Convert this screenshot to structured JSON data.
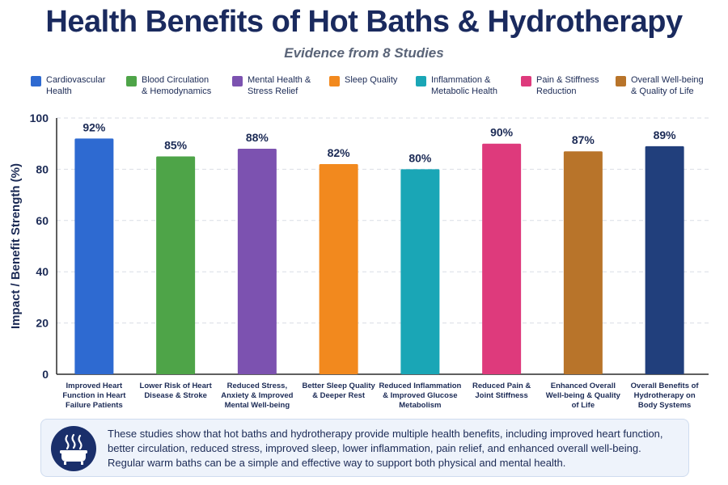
{
  "chart_data": {
    "type": "bar",
    "title": "Health Benefits of Hot Baths & Hydrotherapy",
    "subtitle": "Evidence from 8 Studies",
    "ylabel": "Impact / Benefit Strength (%)",
    "xlabel": "",
    "ylim": [
      0,
      100
    ],
    "yticks": [
      0,
      20,
      40,
      60,
      80,
      100
    ],
    "grid": true,
    "legend_position": "top",
    "categories": [
      "Improved Heart Function in Heart Failure Patients",
      "Lower Risk of Heart Disease & Stroke",
      "Reduced Stress, Anxiety & Improved Mental Well-being",
      "Better Sleep Quality & Deeper Rest",
      "Reduced Inflammation & Improved Glucose Metabolism",
      "Reduced Pain & Joint Stiffness",
      "Enhanced Overall Well-being & Quality of Life",
      "Overall Benefits of Hydrotherapy on Body Systems"
    ],
    "category_lines": [
      [
        "Improved Heart",
        "Function in Heart",
        "Failure Patients"
      ],
      [
        "Lower Risk of Heart",
        "Disease & Stroke"
      ],
      [
        "Reduced Stress,",
        "Anxiety & Improved",
        "Mental Well-being"
      ],
      [
        "Better Sleep Quality",
        "& Deeper Rest"
      ],
      [
        "Reduced Inflammation",
        "& Improved Glucose",
        "Metabolism"
      ],
      [
        "Reduced Pain &",
        "Joint Stiffness"
      ],
      [
        "Enhanced Overall",
        "Well-being & Quality",
        "of Life"
      ],
      [
        "Overall Benefits of",
        "Hydrotherapy on",
        "Body Systems"
      ]
    ],
    "values": [
      92,
      85,
      88,
      82,
      80,
      90,
      87,
      89
    ],
    "value_labels": [
      "92%",
      "85%",
      "88%",
      "82%",
      "80%",
      "90%",
      "87%",
      "89%"
    ],
    "colors": [
      "#2e6ad1",
      "#4ea448",
      "#7c52b0",
      "#f2891e",
      "#1aa6b6",
      "#de3a7c",
      "#b8742a",
      "#213f7c"
    ],
    "legend": [
      {
        "lines": [
          "Cardiovascular",
          "Health"
        ],
        "color": "#2e6ad1"
      },
      {
        "lines": [
          "Blood Circulation",
          "& Hemodynamics"
        ],
        "color": "#4ea448"
      },
      {
        "lines": [
          "Mental Health &",
          "Stress Relief"
        ],
        "color": "#7c52b0"
      },
      {
        "lines": [
          "Sleep Quality"
        ],
        "color": "#f2891e"
      },
      {
        "lines": [
          "Inflammation &",
          "Metabolic Health"
        ],
        "color": "#1aa6b6"
      },
      {
        "lines": [
          "Pain & Stiffness",
          "Reduction"
        ],
        "color": "#de3a7c"
      },
      {
        "lines": [
          "Overall Well-being",
          "& Quality of Life"
        ],
        "color": "#b8742a"
      }
    ]
  },
  "summary": {
    "icon": "bathtub-icon",
    "text": "These studies show that hot baths and hydrotherapy provide multiple health benefits, including improved heart function, better circulation, reduced stress, improved sleep, lower inflammation, pain relief, and enhanced overall well-being. Regular warm baths can be a simple and effective way to support both physical and mental health."
  }
}
